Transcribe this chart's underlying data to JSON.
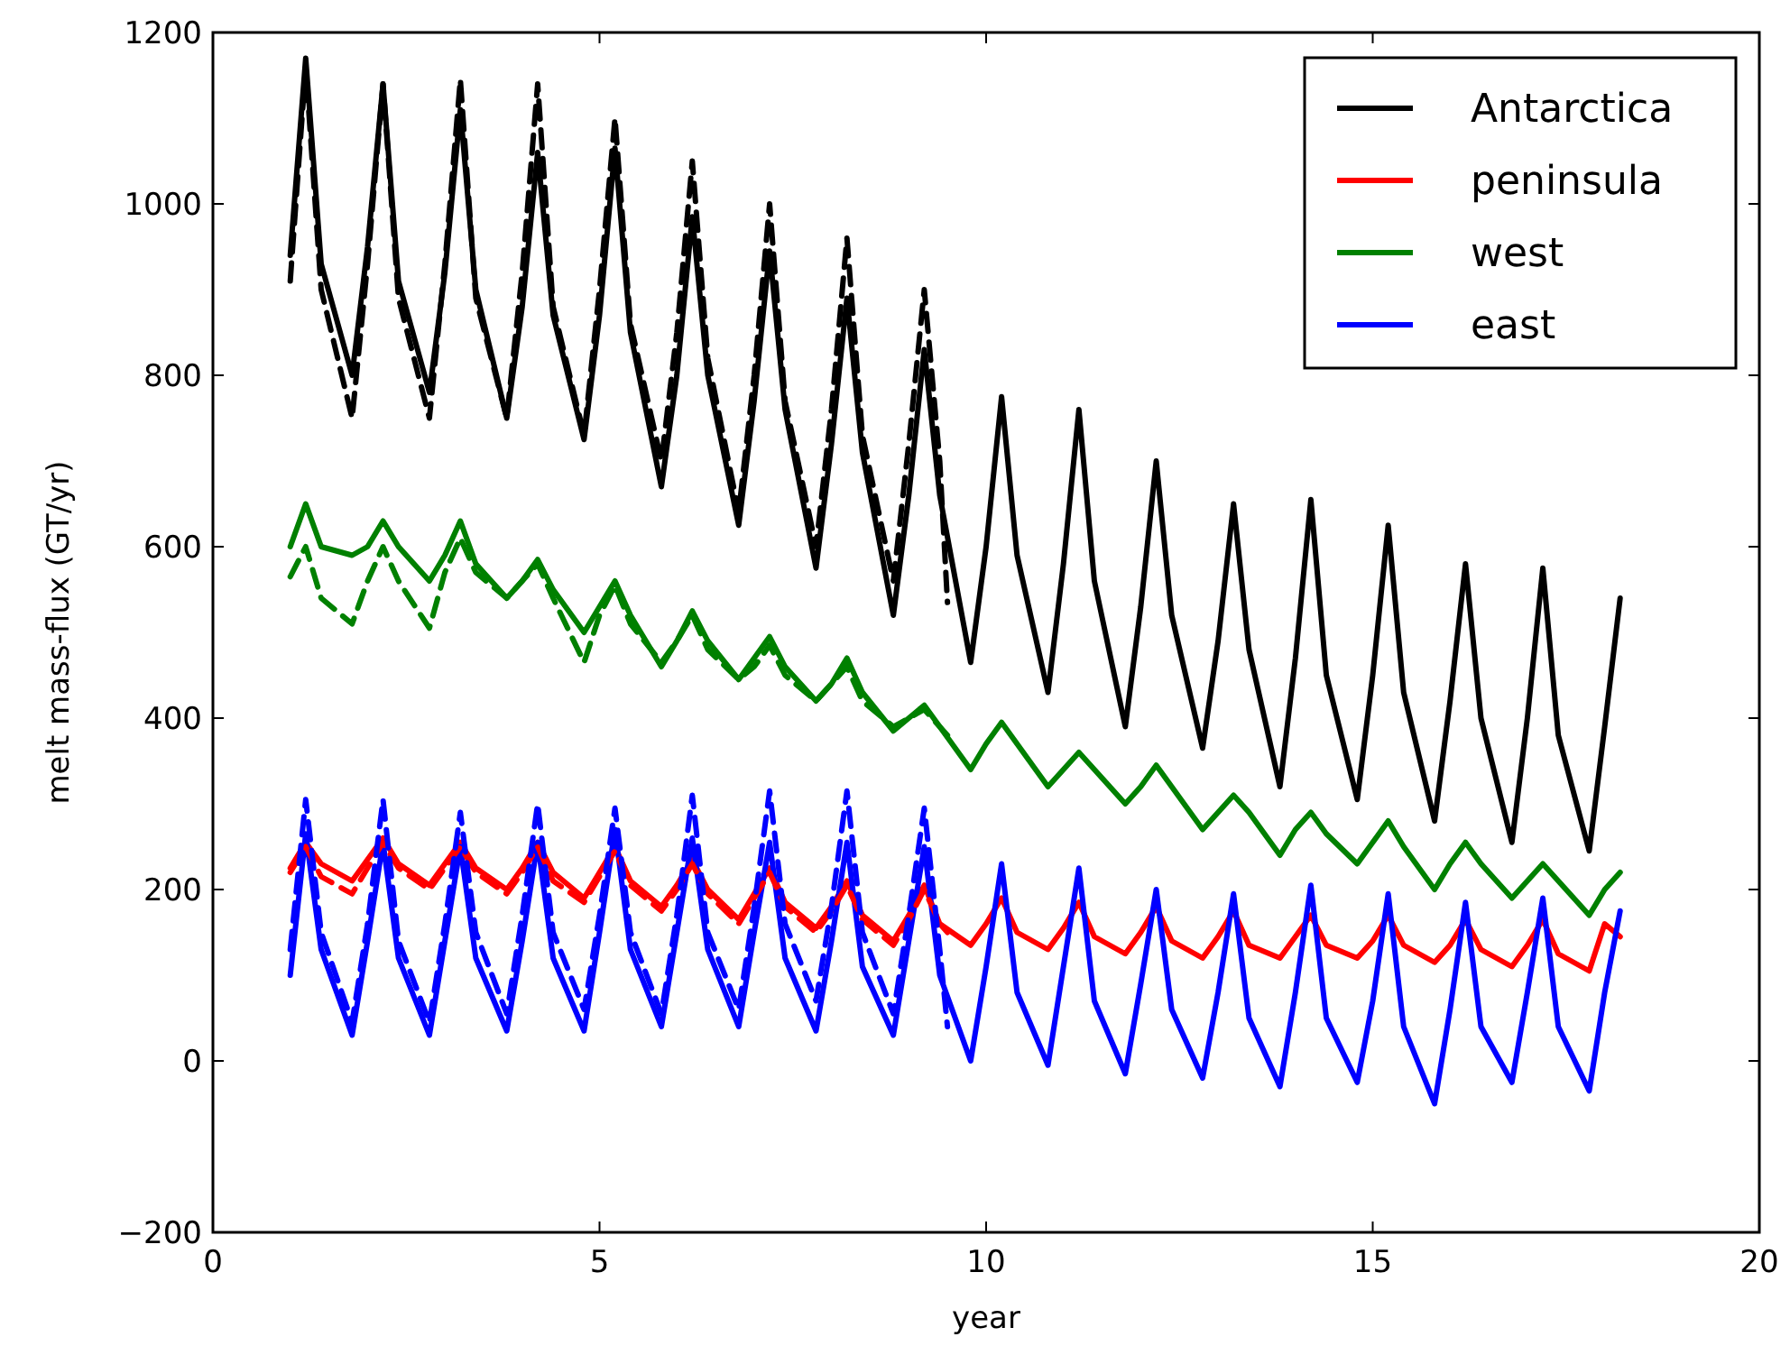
{
  "chart_data": {
    "type": "line",
    "xlabel": "year",
    "ylabel": "melt mass-flux (GT/yr)",
    "xlim": [
      0,
      20
    ],
    "ylim": [
      -200,
      1200
    ],
    "xticks": [
      0,
      5,
      10,
      15,
      20
    ],
    "yticks": [
      {
        "value": -200,
        "label": "−200"
      },
      0,
      200,
      400,
      600,
      800,
      1000,
      1200
    ],
    "legend": "top right",
    "grid": false,
    "line_style": "solid",
    "marker": "none",
    "x": [
      1,
      1.2,
      1.4,
      1.8,
      2,
      2.2,
      2.4,
      2.8,
      3,
      3.2,
      3.4,
      3.8,
      4,
      4.2,
      4.4,
      4.8,
      5,
      5.2,
      5.4,
      5.8,
      6,
      6.2,
      6.4,
      6.8,
      7,
      7.2,
      7.4,
      7.8,
      8,
      8.2,
      8.4,
      8.8,
      9,
      9.2,
      9.4,
      9.8,
      10,
      10.2,
      10.4,
      10.8,
      11,
      11.2,
      11.4,
      11.8,
      12,
      12.2,
      12.4,
      12.8,
      13,
      13.2,
      13.4,
      13.8,
      14,
      14.2,
      14.4,
      14.8,
      15,
      15.2,
      15.4,
      15.8,
      16,
      16.2,
      16.4,
      16.8,
      17,
      17.2,
      17.4,
      17.8,
      18,
      18.2
    ],
    "series": [
      {
        "name": "Antarctica",
        "color": "#000000",
        "values": [
          940,
          1170,
          930,
          800,
          950,
          1140,
          910,
          780,
          920,
          1110,
          900,
          750,
          880,
          1060,
          870,
          725,
          870,
          1065,
          850,
          670,
          800,
          985,
          800,
          625,
          770,
          945,
          760,
          575,
          720,
          890,
          710,
          520,
          660,
          830,
          660,
          465,
          600,
          775,
          590,
          430,
          580,
          760,
          560,
          390,
          530,
          700,
          520,
          365,
          490,
          650,
          480,
          320,
          470,
          655,
          450,
          305,
          450,
          625,
          430,
          280,
          420,
          580,
          400,
          255,
          400,
          575,
          380,
          245,
          390,
          540
        ]
      },
      {
        "name": "peninsula",
        "color": "#ff0000",
        "values": [
          225,
          255,
          230,
          210,
          235,
          260,
          230,
          205,
          230,
          255,
          225,
          200,
          225,
          255,
          220,
          190,
          220,
          250,
          210,
          180,
          205,
          235,
          200,
          165,
          195,
          225,
          185,
          155,
          180,
          210,
          170,
          140,
          170,
          205,
          160,
          135,
          160,
          190,
          150,
          130,
          155,
          185,
          145,
          125,
          150,
          180,
          140,
          120,
          145,
          175,
          135,
          120,
          145,
          170,
          135,
          120,
          140,
          170,
          135,
          115,
          135,
          165,
          130,
          110,
          135,
          165,
          125,
          105,
          160,
          145
        ]
      },
      {
        "name": "west",
        "color": "#008000",
        "values": [
          600,
          650,
          600,
          590,
          600,
          630,
          600,
          560,
          590,
          630,
          580,
          540,
          560,
          585,
          550,
          500,
          530,
          560,
          520,
          460,
          490,
          525,
          490,
          445,
          470,
          495,
          460,
          420,
          440,
          470,
          430,
          385,
          400,
          415,
          390,
          340,
          370,
          395,
          370,
          320,
          340,
          360,
          340,
          300,
          320,
          345,
          320,
          270,
          290,
          310,
          290,
          240,
          270,
          290,
          265,
          230,
          255,
          280,
          250,
          200,
          230,
          255,
          230,
          190,
          210,
          230,
          210,
          170,
          200,
          220
        ]
      },
      {
        "name": "east",
        "color": "#0000ff",
        "values": [
          100,
          265,
          130,
          30,
          140,
          255,
          120,
          30,
          140,
          250,
          120,
          35,
          140,
          255,
          120,
          35,
          150,
          270,
          130,
          40,
          150,
          260,
          130,
          40,
          150,
          255,
          120,
          35,
          140,
          255,
          110,
          30,
          140,
          250,
          100,
          0,
          110,
          230,
          80,
          -5,
          110,
          225,
          70,
          -15,
          90,
          200,
          60,
          -20,
          80,
          195,
          50,
          -30,
          80,
          205,
          50,
          -25,
          70,
          195,
          40,
          -50,
          60,
          185,
          40,
          -25,
          80,
          190,
          40,
          -35,
          80,
          175
        ]
      },
      {
        "color": "#000000",
        "line_style": "dashed",
        "x": [
          1,
          1.2,
          1.4,
          1.8,
          2,
          2.2,
          2.4,
          2.8,
          3,
          3.2,
          3.4,
          3.8,
          4,
          4.2,
          4.4,
          4.8,
          5,
          5.2,
          5.4,
          5.8,
          6,
          6.2,
          6.4,
          6.8,
          7,
          7.2,
          7.4,
          7.8,
          8,
          8.2,
          8.4,
          8.8,
          9,
          9.2,
          9.4,
          9.5
        ],
        "values": [
          910,
          1160,
          900,
          750,
          930,
          1140,
          890,
          750,
          930,
          1145,
          890,
          750,
          920,
          1140,
          880,
          730,
          900,
          1100,
          860,
          700,
          850,
          1050,
          820,
          640,
          800,
          1000,
          770,
          600,
          760,
          960,
          730,
          560,
          720,
          900,
          700,
          535
        ]
      },
      {
        "color": "#ff0000",
        "line_style": "dashed",
        "x": [
          1,
          1.2,
          1.4,
          1.8,
          2,
          2.2,
          2.4,
          2.8,
          3,
          3.2,
          3.4,
          3.8,
          4,
          4.2,
          4.4,
          4.8,
          5,
          5.2,
          5.4,
          5.8,
          6,
          6.2,
          6.4,
          6.8,
          7,
          7.2,
          7.4,
          7.8,
          8,
          8.2,
          8.4,
          8.8,
          9,
          9.2,
          9.4,
          9.5
        ],
        "values": [
          220,
          250,
          215,
          195,
          225,
          255,
          225,
          200,
          225,
          250,
          220,
          195,
          220,
          250,
          210,
          185,
          215,
          245,
          205,
          175,
          200,
          230,
          195,
          160,
          190,
          220,
          180,
          150,
          175,
          205,
          165,
          135,
          165,
          200,
          160,
          150
        ]
      },
      {
        "color": "#008000",
        "line_style": "dashed",
        "x": [
          1,
          1.2,
          1.4,
          1.8,
          2,
          2.2,
          2.4,
          2.8,
          3,
          3.2,
          3.4,
          3.8,
          4,
          4.2,
          4.4,
          4.8,
          5,
          5.2,
          5.4,
          5.8,
          6,
          6.2,
          6.4,
          6.8,
          7,
          7.2,
          7.4,
          7.8,
          8,
          8.2,
          8.4,
          8.8,
          9,
          9.2,
          9.4,
          9.5
        ],
        "values": [
          565,
          600,
          540,
          510,
          560,
          600,
          560,
          505,
          570,
          610,
          570,
          540,
          560,
          580,
          540,
          465,
          520,
          555,
          510,
          465,
          490,
          520,
          480,
          445,
          460,
          485,
          450,
          420,
          440,
          460,
          420,
          390,
          400,
          410,
          390,
          380
        ]
      },
      {
        "color": "#0000ff",
        "line_style": "dashed",
        "x": [
          1,
          1.2,
          1.4,
          1.8,
          2,
          2.2,
          2.4,
          2.8,
          3,
          3.2,
          3.4,
          3.8,
          4,
          4.2,
          4.4,
          4.8,
          5,
          5.2,
          5.4,
          5.8,
          6,
          6.2,
          6.4,
          6.8,
          7,
          7.2,
          7.4,
          7.8,
          8,
          8.2,
          8.4,
          8.8,
          9,
          9.2,
          9.4,
          9.5
        ],
        "values": [
          130,
          305,
          150,
          45,
          160,
          305,
          140,
          45,
          160,
          290,
          150,
          55,
          170,
          300,
          150,
          60,
          170,
          295,
          150,
          55,
          170,
          310,
          150,
          60,
          180,
          315,
          160,
          70,
          180,
          315,
          150,
          55,
          170,
          295,
          130,
          40
        ]
      }
    ]
  }
}
